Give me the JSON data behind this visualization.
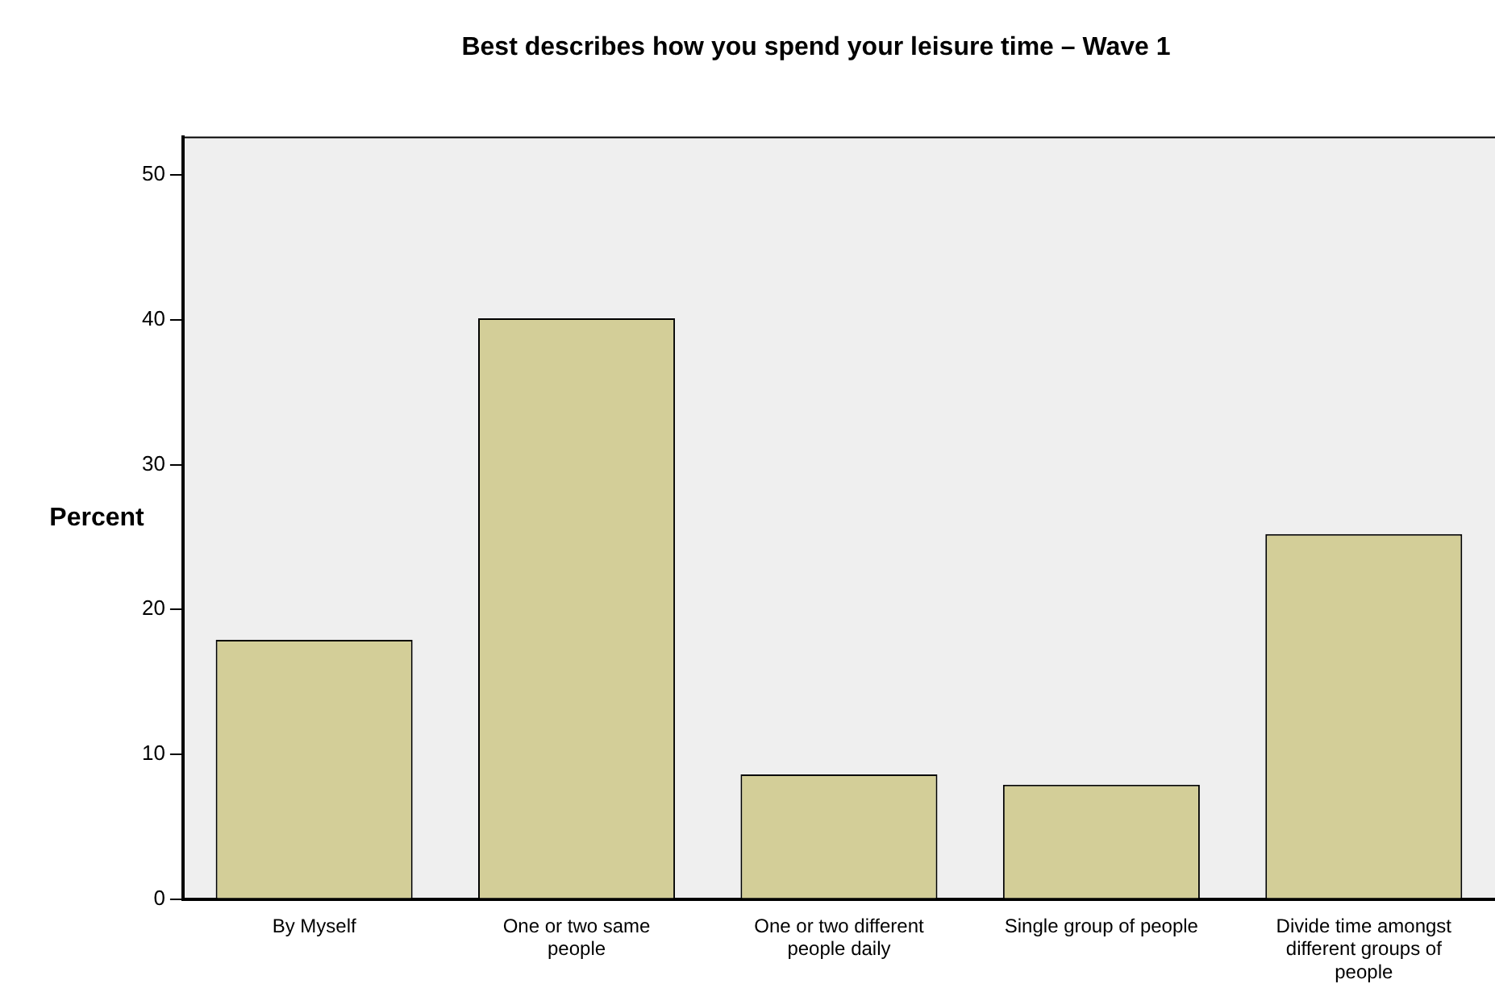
{
  "chart_data": {
    "type": "bar",
    "title": "Best describes how you spend your leisure time – Wave 1",
    "ylabel": "Percent",
    "categories": [
      "By Myself",
      "One or two same people",
      "One or two different people daily",
      "Single group of people",
      "Divide time amongst different groups of people"
    ],
    "values": [
      17.9,
      40.1,
      8.6,
      7.9,
      25.2
    ],
    "color": "#d3ce98",
    "ylim": [
      0,
      52.6
    ],
    "yticks": [
      0,
      10,
      20,
      30,
      40,
      50
    ],
    "grid": false,
    "legend": false
  }
}
